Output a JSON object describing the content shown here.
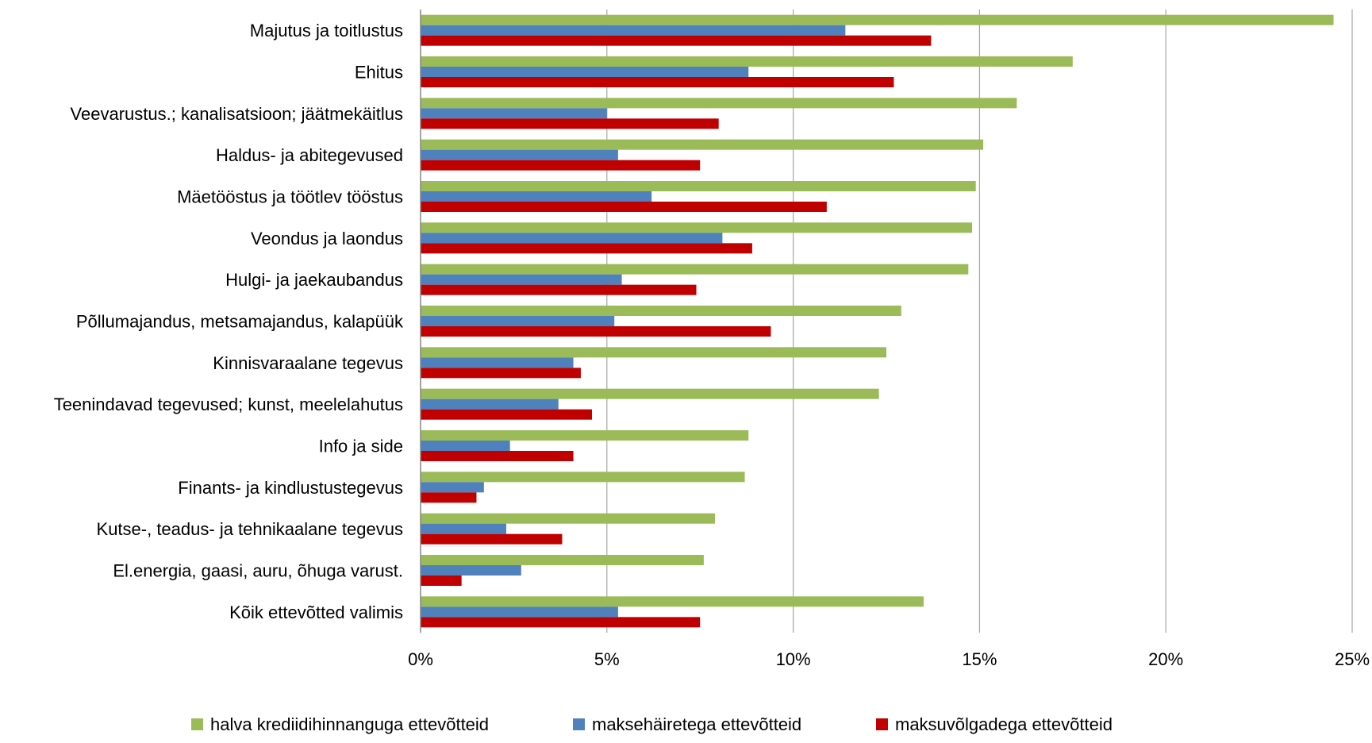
{
  "chart_data": {
    "type": "bar",
    "orientation": "horizontal",
    "title": "",
    "xlabel": "",
    "ylabel": "",
    "xlim": [
      0,
      0.25
    ],
    "ticks": [
      0,
      0.05,
      0.1,
      0.15,
      0.2,
      0.25
    ],
    "tick_labels": [
      "0%",
      "5%",
      "10%",
      "15%",
      "20%",
      "25%"
    ],
    "grid": "vertical",
    "legend_position": "bottom",
    "categories": [
      "Majutus ja toitlustus",
      "Ehitus",
      "Veevarustus.; kanalisatsioon; jäätmekäitlus",
      "Haldus- ja abitegevused",
      "Mäetööstus ja töötlev tööstus",
      "Veondus ja laondus",
      "Hulgi- ja jaekaubandus",
      "Põllumajandus, metsamajandus, kalapüük",
      "Kinnisvaraalane tegevus",
      "Teenindavad tegevused; kunst, meelelahutus",
      "Info ja side",
      "Finants- ja kindlustustegevus",
      "Kutse-, teadus- ja tehnikaalane tegevus",
      "El.energia, gaasi, auru, õhuga varust.",
      "Kõik ettevõtted valimis"
    ],
    "series": [
      {
        "name": "halva krediidihinnanguga ettevõtteid",
        "color": "#9bbb59",
        "values": [
          0.245,
          0.175,
          0.16,
          0.151,
          0.149,
          0.148,
          0.147,
          0.129,
          0.125,
          0.123,
          0.088,
          0.087,
          0.079,
          0.076,
          0.135
        ]
      },
      {
        "name": "maksehäiretega ettevõtteid",
        "color": "#4f81bd",
        "values": [
          0.114,
          0.088,
          0.05,
          0.053,
          0.062,
          0.081,
          0.054,
          0.052,
          0.041,
          0.037,
          0.024,
          0.017,
          0.023,
          0.027,
          0.053
        ]
      },
      {
        "name": "maksuvõlgadega ettevõtteid",
        "color": "#c00000",
        "values": [
          0.137,
          0.127,
          0.08,
          0.075,
          0.109,
          0.089,
          0.074,
          0.094,
          0.043,
          0.046,
          0.041,
          0.015,
          0.038,
          0.011,
          0.075
        ]
      }
    ]
  },
  "colors": {
    "grid": "#a6a6a6",
    "axis": "#868686"
  }
}
